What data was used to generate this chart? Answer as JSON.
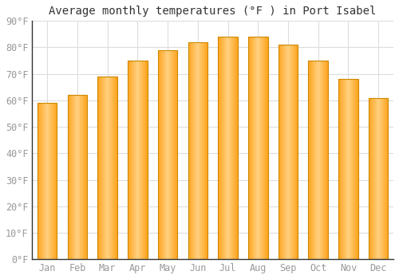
{
  "title": "Average monthly temperatures (°F ) in Port Isabel",
  "months": [
    "Jan",
    "Feb",
    "Mar",
    "Apr",
    "May",
    "Jun",
    "Jul",
    "Aug",
    "Sep",
    "Oct",
    "Nov",
    "Dec"
  ],
  "values": [
    59,
    62,
    69,
    75,
    79,
    82,
    84,
    84,
    81,
    75,
    68,
    61
  ],
  "bar_color_main": "#FFA520",
  "bar_color_light": "#FFD080",
  "bar_edge_color": "#CC8800",
  "background_color": "#FFFFFF",
  "ylim": [
    0,
    90
  ],
  "yticks": [
    0,
    10,
    20,
    30,
    40,
    50,
    60,
    70,
    80,
    90
  ],
  "ytick_labels": [
    "0°F",
    "10°F",
    "20°F",
    "30°F",
    "40°F",
    "50°F",
    "60°F",
    "70°F",
    "80°F",
    "90°F"
  ],
  "grid_color": "#DDDDDD",
  "tick_color": "#999999",
  "spine_color": "#333333",
  "title_fontsize": 10,
  "tick_fontsize": 8.5,
  "bar_width": 0.65
}
